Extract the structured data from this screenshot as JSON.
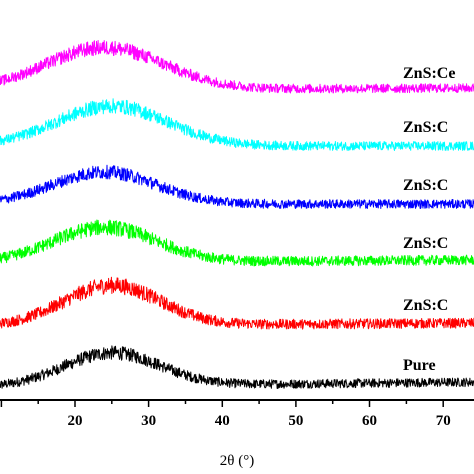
{
  "chart_data": {
    "type": "line",
    "title": "",
    "xlabel": "2θ (°)",
    "ylabel": "",
    "xlim": [
      9,
      75
    ],
    "x_ticks": [
      20,
      30,
      40,
      50,
      60,
      70
    ],
    "x_tick_labels": [
      "20",
      "30",
      "40",
      "50",
      "60",
      "70"
    ],
    "y_ticks_shown": false,
    "grid": false,
    "legend": "none (labels placed at right end of each pattern)",
    "series": [
      {
        "name": "Pure",
        "color": "#000000",
        "offset": 0,
        "peak_center": 25,
        "peak_height": 33,
        "peak_width": 6.5,
        "baseline_start": 3,
        "baseline_end": 8,
        "noise": 4.5
      },
      {
        "name": "ZnS:C",
        "color": "#ff0000",
        "offset": 60,
        "peak_center": 25,
        "peak_height": 40,
        "peak_width": 6.5,
        "baseline_start": 4,
        "baseline_end": 7,
        "noise": 5
      },
      {
        "name": "ZnS:C",
        "color": "#00ff00",
        "offset": 122,
        "peak_center": 24,
        "peak_height": 35,
        "peak_width": 7,
        "baseline_start": 5,
        "baseline_end": 8,
        "noise": 5
      },
      {
        "name": "ZnS:C",
        "color": "#0000ff",
        "offset": 180,
        "peak_center": 24,
        "peak_height": 32,
        "peak_width": 7,
        "baseline_start": 6,
        "baseline_end": 6,
        "noise": 4.5
      },
      {
        "name": "ZnS:C",
        "color": "#00ffff",
        "offset": 238,
        "peak_center": 25,
        "peak_height": 40,
        "peak_width": 7.5,
        "baseline_start": 6,
        "baseline_end": 6,
        "noise": 4.5
      },
      {
        "name": "ZnS:Ce",
        "color": "#ff00ff",
        "offset": 292,
        "peak_center": 24,
        "peak_height": 42,
        "peak_width": 8,
        "baseline_start": 8,
        "baseline_end": 10,
        "noise": 4.5
      }
    ]
  }
}
